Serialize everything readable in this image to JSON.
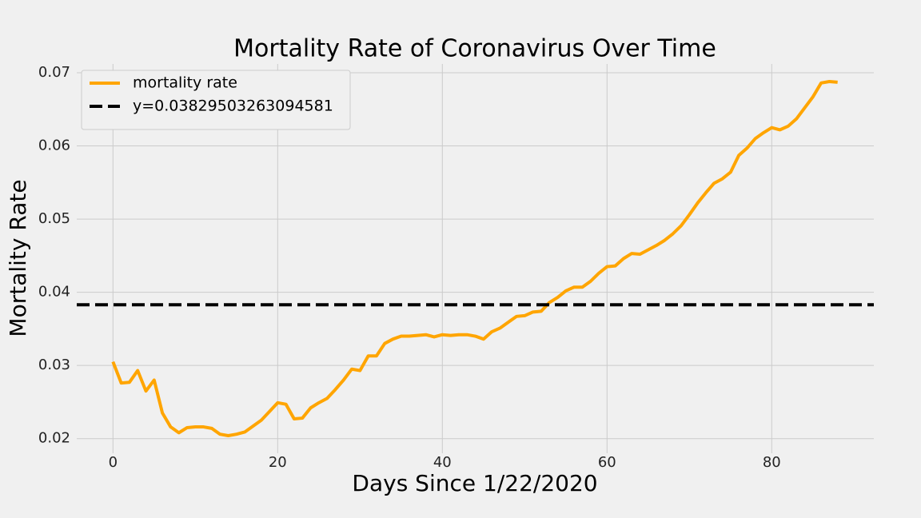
{
  "chart_data": {
    "type": "line",
    "title": "Mortality Rate of Coronavirus Over Time",
    "x_label": "Days Since 1/22/2020",
    "y_label": "Mortality Rate",
    "x": [
      0,
      1,
      2,
      3,
      4,
      5,
      6,
      7,
      8,
      9,
      10,
      11,
      12,
      13,
      14,
      15,
      16,
      17,
      18,
      19,
      20,
      21,
      22,
      23,
      24,
      25,
      26,
      27,
      28,
      29,
      30,
      31,
      32,
      33,
      34,
      35,
      36,
      37,
      38,
      39,
      40,
      41,
      42,
      43,
      44,
      45,
      46,
      47,
      48,
      49,
      50,
      51,
      52,
      53,
      54,
      55,
      56,
      57,
      58,
      59,
      60,
      61,
      62,
      63,
      64,
      65,
      66,
      67,
      68,
      69,
      70,
      71,
      72,
      73,
      74,
      75,
      76,
      77,
      78,
      79,
      80,
      81,
      82,
      83,
      84,
      85,
      86,
      87,
      88
    ],
    "series": [
      {
        "name": "mortality rate",
        "color": "#ffa500",
        "values": [
          0.0305,
          0.0276,
          0.0277,
          0.0293,
          0.0265,
          0.028,
          0.0235,
          0.0216,
          0.0208,
          0.0215,
          0.0216,
          0.0216,
          0.0214,
          0.0206,
          0.0204,
          0.0206,
          0.0209,
          0.0217,
          0.0225,
          0.0237,
          0.0249,
          0.0247,
          0.0227,
          0.0228,
          0.0242,
          0.0249,
          0.0255,
          0.0267,
          0.028,
          0.0295,
          0.0293,
          0.0313,
          0.0313,
          0.033,
          0.0336,
          0.034,
          0.034,
          0.0341,
          0.0342,
          0.0339,
          0.0342,
          0.0341,
          0.0342,
          0.0342,
          0.034,
          0.0336,
          0.0346,
          0.0351,
          0.0359,
          0.0367,
          0.0368,
          0.0373,
          0.0374,
          0.0386,
          0.0393,
          0.0402,
          0.0407,
          0.0407,
          0.0415,
          0.0426,
          0.0435,
          0.0436,
          0.0446,
          0.0453,
          0.0452,
          0.0458,
          0.0464,
          0.0471,
          0.048,
          0.0491,
          0.0506,
          0.0522,
          0.0536,
          0.0549,
          0.0555,
          0.0564,
          0.0587,
          0.0597,
          0.061,
          0.0618,
          0.0625,
          0.0622,
          0.0627,
          0.0637,
          0.0652,
          0.0667,
          0.0686,
          0.0688,
          0.0687
        ]
      },
      {
        "name": "y=0.03829503263094581",
        "color": "#000000",
        "dashed": true,
        "hline": 0.03829503263094581
      }
    ],
    "xlim": [
      -4.4,
      92.4
    ],
    "ylim": [
      0.018,
      0.0712
    ],
    "xticks": [
      0,
      20,
      40,
      60,
      80
    ],
    "yticks": [
      0.02,
      0.03,
      0.04,
      0.05,
      0.06,
      0.07
    ],
    "grid": true,
    "legend": "upper left"
  }
}
